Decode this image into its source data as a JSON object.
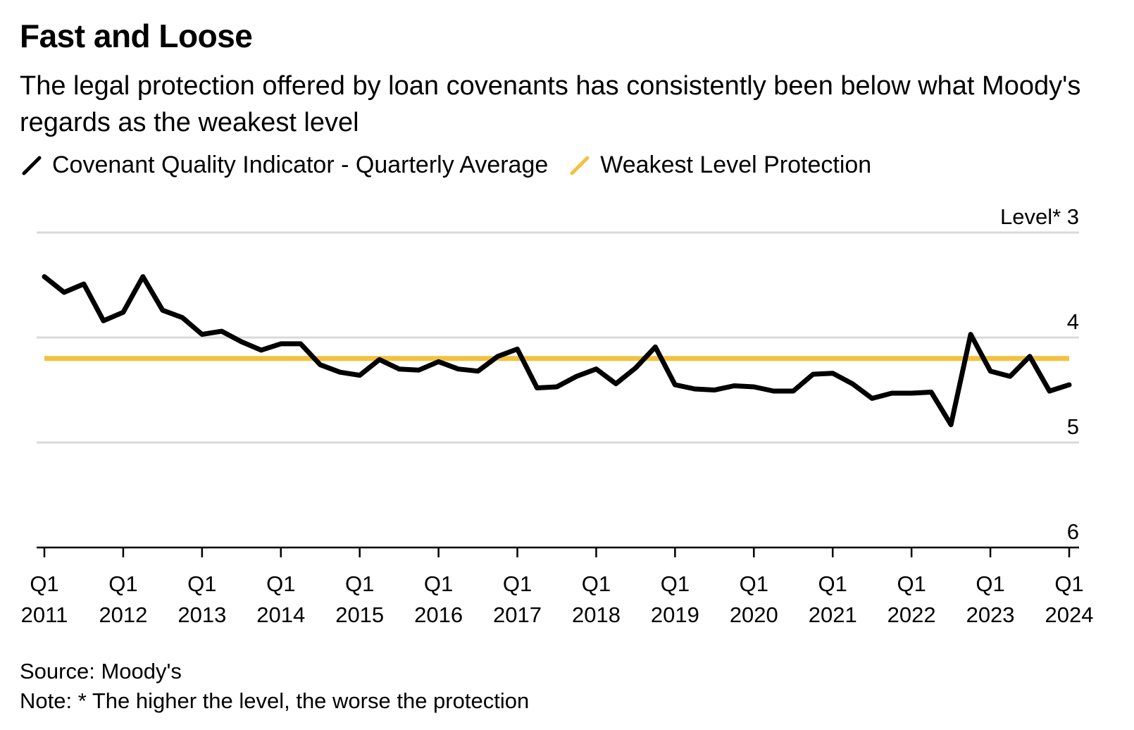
{
  "header": {
    "title": "Fast and Loose",
    "subtitle": "The legal protection offered by loan covenants has consistently been below what Moody's regards as the weakest level"
  },
  "legend": [
    {
      "label": "Covenant Quality Indicator - Quarterly Average",
      "color": "#000000"
    },
    {
      "label": "Weakest Level Protection",
      "color": "#F2C23E"
    }
  ],
  "footer": {
    "source": "Source: Moody's",
    "note": "Note: * The higher the level, the worse the protection"
  },
  "chart_data": {
    "type": "line",
    "title": "Fast and Loose",
    "ylabel": "Level*",
    "y_inverted": true,
    "ylim": [
      3,
      6
    ],
    "yticks": [
      3,
      4,
      5,
      6
    ],
    "x_tick_labels": [
      {
        "line1": "Q1",
        "line2": "2011"
      },
      {
        "line1": "Q1",
        "line2": "2012"
      },
      {
        "line1": "Q1",
        "line2": "2013"
      },
      {
        "line1": "Q1",
        "line2": "2014"
      },
      {
        "line1": "Q1",
        "line2": "2015"
      },
      {
        "line1": "Q1",
        "line2": "2016"
      },
      {
        "line1": "Q1",
        "line2": "2017"
      },
      {
        "line1": "Q1",
        "line2": "2018"
      },
      {
        "line1": "Q1",
        "line2": "2019"
      },
      {
        "line1": "Q1",
        "line2": "2020"
      },
      {
        "line1": "Q1",
        "line2": "2021"
      },
      {
        "line1": "Q1",
        "line2": "2022"
      },
      {
        "line1": "Q1",
        "line2": "2023"
      },
      {
        "line1": "Q1",
        "line2": "2024"
      }
    ],
    "x_start": "2011 Q1",
    "series": [
      {
        "name": "Covenant Quality Indicator - Quarterly Average",
        "color": "#000000",
        "values": [
          3.42,
          3.57,
          3.49,
          3.84,
          3.76,
          3.42,
          3.74,
          3.81,
          3.97,
          3.94,
          4.04,
          4.12,
          4.06,
          4.06,
          4.26,
          4.33,
          4.36,
          4.21,
          4.3,
          4.31,
          4.23,
          4.3,
          4.32,
          4.18,
          4.11,
          4.48,
          4.47,
          4.37,
          4.3,
          4.44,
          4.29,
          4.09,
          4.45,
          4.49,
          4.5,
          4.46,
          4.47,
          4.51,
          4.51,
          4.35,
          4.34,
          4.44,
          4.58,
          4.53,
          4.53,
          4.52,
          4.83,
          3.97,
          4.32,
          4.37,
          4.18,
          4.51,
          4.45
        ]
      },
      {
        "name": "Weakest Level Protection",
        "color": "#F2C23E",
        "constant": 4.2
      }
    ]
  }
}
